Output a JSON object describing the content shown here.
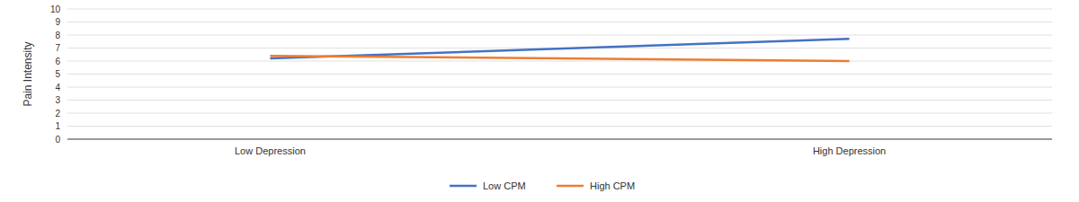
{
  "chart_data": {
    "type": "line",
    "categories": [
      "Low Depression",
      "High Depression"
    ],
    "series": [
      {
        "name": "Low CPM",
        "color": "#4472C4",
        "values": [
          6.2,
          7.7
        ]
      },
      {
        "name": "High CPM",
        "color": "#ED7D31",
        "values": [
          6.4,
          6.0
        ]
      }
    ],
    "y_label": "Pain Intensity",
    "ylim": [
      0,
      10
    ],
    "yticks": [
      0,
      1,
      2,
      3,
      4,
      5,
      6,
      7,
      8,
      9,
      10
    ],
    "grid": true,
    "legend": "bottom"
  }
}
